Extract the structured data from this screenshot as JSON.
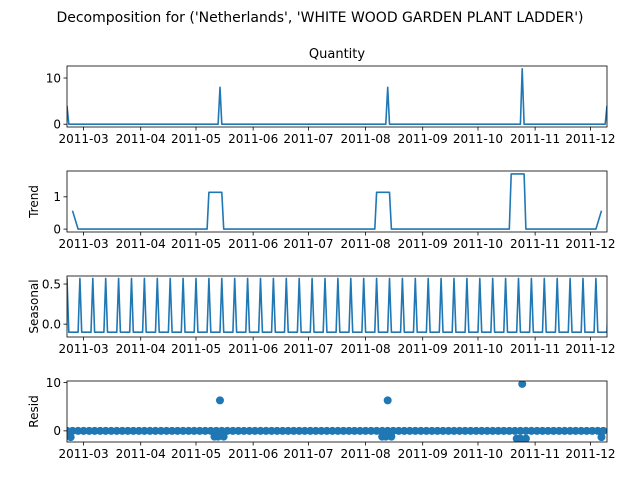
{
  "figure": {
    "title": "Decomposition for ('Netherlands', 'WHITE WOOD GARDEN PLANT LADDER')"
  },
  "chart_data": [
    {
      "type": "line",
      "title": "Quantity",
      "ylabel": "",
      "ylim": [
        -0.6,
        12.6
      ],
      "yticks": [
        0,
        10
      ],
      "x_range": [
        "2011-02-20",
        "2011-12-10"
      ],
      "xticks": [
        "2011-03",
        "2011-04",
        "2011-05",
        "2011-06",
        "2011-07",
        "2011-08",
        "2011-09",
        "2011-10",
        "2011-11",
        "2011-12"
      ],
      "baseline": 0,
      "points": [
        {
          "x": "2011-02-20",
          "y": 4
        },
        {
          "x": "2011-02-21",
          "y": 0
        },
        {
          "x": "2011-05-13",
          "y": 0
        },
        {
          "x": "2011-05-14",
          "y": 8
        },
        {
          "x": "2011-05-15",
          "y": 0
        },
        {
          "x": "2011-08-12",
          "y": 0
        },
        {
          "x": "2011-08-13",
          "y": 8
        },
        {
          "x": "2011-08-14",
          "y": 0
        },
        {
          "x": "2011-10-24",
          "y": 0
        },
        {
          "x": "2011-10-25",
          "y": 12
        },
        {
          "x": "2011-10-26",
          "y": 0
        },
        {
          "x": "2011-12-09",
          "y": 0
        },
        {
          "x": "2011-12-10",
          "y": 4
        }
      ],
      "color": "#1f77b4"
    },
    {
      "type": "line",
      "title": "",
      "ylabel": "Trend",
      "ylim": [
        -0.09,
        1.8
      ],
      "yticks": [
        0,
        1
      ],
      "x_range": [
        "2011-02-20",
        "2011-12-10"
      ],
      "xticks": [
        "2011-03",
        "2011-04",
        "2011-05",
        "2011-06",
        "2011-07",
        "2011-08",
        "2011-09",
        "2011-10",
        "2011-11",
        "2011-12"
      ],
      "points": [
        {
          "x": "2011-02-23",
          "y": 0.57
        },
        {
          "x": "2011-02-26",
          "y": 0
        },
        {
          "x": "2011-05-07",
          "y": 0
        },
        {
          "x": "2011-05-08",
          "y": 1.14
        },
        {
          "x": "2011-05-15",
          "y": 1.14
        },
        {
          "x": "2011-05-16",
          "y": 0
        },
        {
          "x": "2011-08-06",
          "y": 0
        },
        {
          "x": "2011-08-07",
          "y": 1.14
        },
        {
          "x": "2011-08-14",
          "y": 1.14
        },
        {
          "x": "2011-08-15",
          "y": 0
        },
        {
          "x": "2011-10-18",
          "y": 0
        },
        {
          "x": "2011-10-19",
          "y": 1.71
        },
        {
          "x": "2011-10-26",
          "y": 1.71
        },
        {
          "x": "2011-10-27",
          "y": 0
        },
        {
          "x": "2011-12-04",
          "y": 0
        },
        {
          "x": "2011-12-07",
          "y": 0.57
        }
      ],
      "color": "#1f77b4"
    },
    {
      "type": "line",
      "title": "",
      "ylabel": "Seasonal",
      "ylim": [
        -0.16,
        0.6
      ],
      "yticks": [
        0.0,
        0.5
      ],
      "ytick_labels": [
        "0.0",
        "0.5"
      ],
      "x_range": [
        "2011-02-20",
        "2011-12-10"
      ],
      "xticks": [
        "2011-03",
        "2011-04",
        "2011-05",
        "2011-06",
        "2011-07",
        "2011-08",
        "2011-09",
        "2011-10",
        "2011-11",
        "2011-12"
      ],
      "period_days": 7,
      "first_peak": "2011-02-20",
      "peak": 0.57,
      "trough": -0.1,
      "color": "#1f77b4"
    },
    {
      "type": "scatter",
      "title": "",
      "ylabel": "Resid",
      "ylim": [
        -2.3,
        10.3
      ],
      "yticks": [
        0,
        10
      ],
      "x_range": [
        "2011-02-20",
        "2011-12-10"
      ],
      "xticks": [
        "2011-03",
        "2011-04",
        "2011-05",
        "2011-06",
        "2011-07",
        "2011-08",
        "2011-09",
        "2011-10",
        "2011-11",
        "2011-12"
      ],
      "baseline_value": 0,
      "baseline_spacing_days": 3,
      "special_points": [
        {
          "x": "2011-02-22",
          "y": -1.3
        },
        {
          "x": "2011-05-11",
          "y": -1.2
        },
        {
          "x": "2011-05-13",
          "y": -1.2
        },
        {
          "x": "2011-05-14",
          "y": 6.3
        },
        {
          "x": "2011-05-16",
          "y": -1.2
        },
        {
          "x": "2011-08-10",
          "y": -1.2
        },
        {
          "x": "2011-08-12",
          "y": -1.2
        },
        {
          "x": "2011-08-13",
          "y": 6.3
        },
        {
          "x": "2011-08-15",
          "y": -1.2
        },
        {
          "x": "2011-10-22",
          "y": -1.6
        },
        {
          "x": "2011-10-24",
          "y": -1.6
        },
        {
          "x": "2011-10-25",
          "y": 9.7
        },
        {
          "x": "2011-10-27",
          "y": -1.6
        },
        {
          "x": "2011-12-07",
          "y": -1.3
        }
      ],
      "color": "#1f77b4"
    }
  ]
}
